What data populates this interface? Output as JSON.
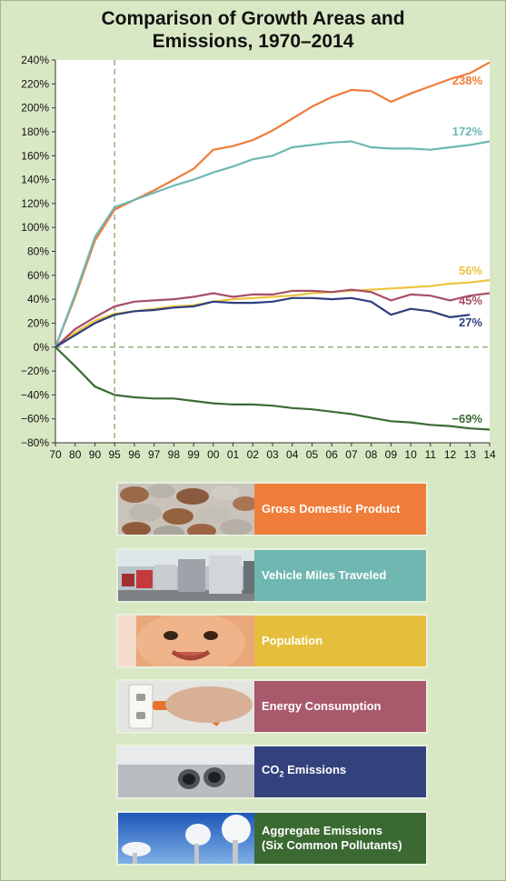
{
  "chart_data": {
    "type": "line",
    "title_lines": [
      "Comparison of Growth Areas and",
      "Emissions, 1970–2014"
    ],
    "categories": [
      "70",
      "80",
      "90",
      "95",
      "96",
      "97",
      "98",
      "99",
      "00",
      "01",
      "02",
      "03",
      "04",
      "05",
      "06",
      "07",
      "08",
      "09",
      "10",
      "11",
      "12",
      "13",
      "14"
    ],
    "ytick_labels": [
      "240%",
      "220%",
      "200%",
      "180%",
      "160%",
      "140%",
      "120%",
      "100%",
      "80%",
      "60%",
      "40%",
      "20%",
      "0%",
      "−20%",
      "−40%",
      "−60%",
      "−80%"
    ],
    "ylim": [
      -80,
      240
    ],
    "reference_lines": {
      "vertical_at": "95",
      "horizontal_at": 0
    },
    "series": [
      {
        "name": "Gross Domestic Product",
        "color": "#ef7d3a",
        "end_label": "238%",
        "values": [
          0,
          42,
          89,
          115,
          123,
          131,
          140,
          149,
          165,
          168,
          173,
          181,
          191,
          201,
          209,
          215,
          214,
          205,
          212,
          218,
          224,
          229,
          238
        ]
      },
      {
        "name": "Vehicle Miles Traveled",
        "color": "#6db8b2",
        "end_label": "172%",
        "values": [
          0,
          44,
          92,
          117,
          123,
          129,
          135,
          140,
          146,
          151,
          157,
          160,
          167,
          169,
          171,
          172,
          167,
          166,
          166,
          165,
          167,
          169,
          172
        ]
      },
      {
        "name": "Population",
        "color": "#ecc33e",
        "end_label": "56%",
        "values": [
          0,
          12,
          22,
          28,
          30,
          32,
          34,
          35,
          38,
          40,
          41,
          42,
          43,
          45,
          46,
          47,
          48,
          49,
          50,
          51,
          53,
          54,
          56
        ]
      },
      {
        "name": "Energy Consumption",
        "color": "#a84f67",
        "end_label": "45%",
        "values": [
          0,
          15,
          25,
          34,
          38,
          39,
          40,
          42,
          45,
          42,
          44,
          44,
          47,
          47,
          46,
          48,
          46,
          39,
          44,
          43,
          39,
          43,
          45
        ]
      },
      {
        "name": "CO2 Emissions",
        "color": "#2f3f7e",
        "end_label": "27%",
        "values": [
          0,
          10,
          20,
          27,
          30,
          31,
          33,
          34,
          38,
          37,
          37,
          38,
          41,
          41,
          40,
          41,
          38,
          27,
          32,
          30,
          25,
          27,
          null
        ]
      },
      {
        "name": "Aggregate Emissions (Six Common Pollutants)",
        "color": "#3c6a36",
        "end_label": "−69%",
        "values": [
          0,
          -16,
          -33,
          -40,
          -42,
          -43,
          -43,
          -45,
          -47,
          -48,
          -48,
          -49,
          -51,
          -52,
          -54,
          -56,
          -59,
          -62,
          -63,
          -65,
          -66,
          -68,
          -69
        ]
      }
    ]
  },
  "legend": [
    {
      "label_lines": [
        "Gross Domestic Product"
      ],
      "color": "#ef7d3a",
      "photo": "coins-photo"
    },
    {
      "label_lines": [
        "Vehicle Miles Traveled"
      ],
      "color": "#6fb7b0",
      "photo": "traffic-photo"
    },
    {
      "label_lines": [
        "Population"
      ],
      "color": "#e5bf3c",
      "photo": "baby-photo"
    },
    {
      "label_lines": [
        "Energy Consumption"
      ],
      "color": "#a85a6c",
      "photo": "plug-photo"
    },
    {
      "label_lines": [
        "CO",
        "2",
        " Emissions"
      ],
      "color": "#33427c",
      "photo": "exhaust-photo"
    },
    {
      "label_lines": [
        "Aggregate Emissions",
        "(Six Common Pollutants)"
      ],
      "color": "#3b6932",
      "photo": "smokestacks-photo"
    }
  ]
}
